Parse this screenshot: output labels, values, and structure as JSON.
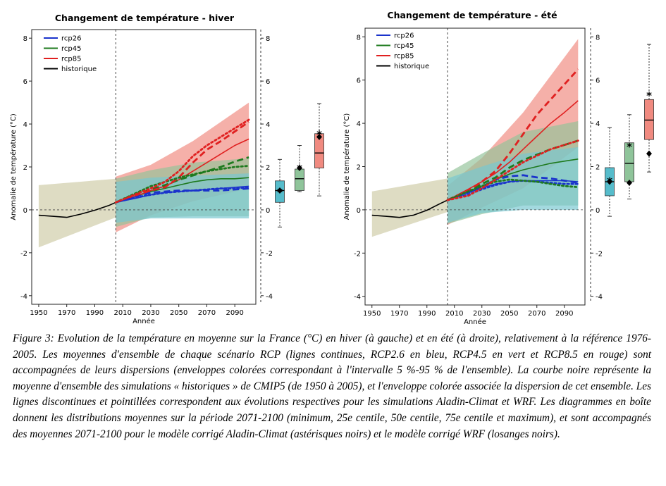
{
  "chart_data": [
    {
      "type": "line",
      "title": "Changement de température - hiver",
      "xlabel": "Année",
      "ylabel": "Anomalie de température (°C)",
      "xlim": [
        1945,
        2105
      ],
      "ylim": [
        -4.4,
        8.4
      ],
      "x_ticks": [
        1950,
        1970,
        1990,
        2010,
        2030,
        2050,
        2070,
        2090
      ],
      "y_ticks": [
        -4,
        -2,
        0,
        2,
        4,
        6,
        8
      ],
      "y_tick_labels": [
        "-4",
        "-2",
        "0",
        "2",
        "4",
        "6",
        "8"
      ],
      "right_tick_labels": [
        "-4",
        "-2",
        "0",
        "2",
        "4",
        "6",
        "8"
      ],
      "vline_x": 2005,
      "legend": {
        "position": "top-left",
        "entries": [
          {
            "name": "rcp26",
            "color": "#1a33cc"
          },
          {
            "name": "rcp45",
            "color": "#1e7a1e"
          },
          {
            "name": "rcp85",
            "color": "#e02020"
          },
          {
            "name": "historique",
            "color": "#000000"
          }
        ]
      },
      "series": [
        {
          "name": "historique",
          "style": "solid",
          "color": "#000000",
          "x": [
            1950,
            1960,
            1970,
            1980,
            1990,
            2000,
            2005
          ],
          "y": [
            -0.25,
            -0.3,
            -0.35,
            -0.2,
            -0.02,
            0.2,
            0.35
          ]
        },
        {
          "name": "rcp26",
          "style": "solid",
          "color": "#1a33cc",
          "x": [
            2005,
            2020,
            2030,
            2040,
            2050,
            2060,
            2070,
            2080,
            2090,
            2100
          ],
          "y": [
            0.35,
            0.55,
            0.7,
            0.8,
            0.85,
            0.9,
            0.95,
            1.0,
            1.05,
            1.1
          ]
        },
        {
          "name": "rcp45",
          "style": "solid",
          "color": "#1e7a1e",
          "x": [
            2005,
            2020,
            2030,
            2040,
            2050,
            2060,
            2070,
            2080,
            2090,
            2100
          ],
          "y": [
            0.35,
            0.65,
            0.85,
            1.0,
            1.15,
            1.3,
            1.4,
            1.45,
            1.45,
            1.5
          ]
        },
        {
          "name": "rcp85",
          "style": "solid",
          "color": "#e02020",
          "x": [
            2005,
            2020,
            2030,
            2040,
            2050,
            2060,
            2070,
            2080,
            2090,
            2100
          ],
          "y": [
            0.35,
            0.65,
            0.9,
            1.1,
            1.4,
            1.8,
            2.2,
            2.6,
            3.0,
            3.3
          ]
        },
        {
          "name": "rcp26",
          "style": "dashed",
          "color": "#1a33cc",
          "x": [
            2005,
            2020,
            2030,
            2040,
            2050,
            2060,
            2070,
            2080,
            2090,
            2100
          ],
          "y": [
            0.35,
            0.65,
            0.8,
            0.85,
            0.9,
            0.9,
            0.9,
            0.9,
            0.95,
            1.0
          ]
        },
        {
          "name": "rcp45",
          "style": "dashed",
          "color": "#1e7a1e",
          "x": [
            2005,
            2020,
            2030,
            2040,
            2050,
            2060,
            2070,
            2080,
            2090,
            2100
          ],
          "y": [
            0.35,
            0.75,
            0.95,
            1.15,
            1.4,
            1.6,
            1.8,
            2.0,
            2.25,
            2.45
          ]
        },
        {
          "name": "rcp85",
          "style": "dashed",
          "color": "#e02020",
          "x": [
            2005,
            2020,
            2030,
            2040,
            2050,
            2060,
            2070,
            2080,
            2090,
            2100
          ],
          "y": [
            0.35,
            0.7,
            0.9,
            1.05,
            1.5,
            2.2,
            2.8,
            3.2,
            3.65,
            4.1
          ]
        },
        {
          "name": "rcp26",
          "style": "dotted",
          "color": "#1a33cc",
          "x": [
            2005,
            2020,
            2030,
            2040,
            2050,
            2060,
            2070,
            2080,
            2090,
            2100
          ],
          "y": [
            0.35,
            0.6,
            0.7,
            0.8,
            0.85,
            0.9,
            0.95,
            1.0,
            1.0,
            1.05
          ]
        },
        {
          "name": "rcp45",
          "style": "dotted",
          "color": "#1e7a1e",
          "x": [
            2005,
            2020,
            2030,
            2040,
            2050,
            2060,
            2070,
            2080,
            2090,
            2100
          ],
          "y": [
            0.35,
            0.8,
            1.1,
            1.3,
            1.5,
            1.65,
            1.8,
            1.9,
            2.0,
            2.05
          ]
        },
        {
          "name": "rcp85",
          "style": "dotted",
          "color": "#e02020",
          "x": [
            2005,
            2020,
            2030,
            2040,
            2050,
            2060,
            2070,
            2080,
            2090,
            2100
          ],
          "y": [
            0.35,
            0.75,
            1.0,
            1.3,
            1.8,
            2.5,
            3.0,
            3.4,
            3.8,
            4.2
          ]
        }
      ],
      "bands": [
        {
          "name": "historique",
          "color": "#cfcba6",
          "x": [
            1950,
            2005
          ],
          "lower": [
            -1.75,
            -0.35
          ],
          "upper": [
            1.15,
            1.45
          ]
        },
        {
          "name": "rcp85",
          "color": "#f08a80",
          "x": [
            2005,
            2030,
            2060,
            2100
          ],
          "lower": [
            -1.05,
            -0.25,
            0.4,
            1.0
          ],
          "upper": [
            1.55,
            2.1,
            3.2,
            5.0
          ]
        },
        {
          "name": "rcp45",
          "color": "#93c29a",
          "x": [
            2005,
            2030,
            2060,
            2100
          ],
          "lower": [
            -0.8,
            -0.35,
            -0.3,
            -0.3
          ],
          "upper": [
            1.45,
            1.85,
            2.2,
            2.4
          ]
        },
        {
          "name": "rcp26",
          "color": "#78c7d0",
          "x": [
            2005,
            2030,
            2060,
            2100
          ],
          "lower": [
            -0.6,
            -0.4,
            -0.4,
            -0.4
          ],
          "upper": [
            1.3,
            1.5,
            1.6,
            1.7
          ]
        }
      ],
      "boxplots": [
        {
          "name": "rcp26",
          "color": "#56bccb",
          "min": -0.8,
          "q1": 0.35,
          "median": 0.9,
          "q3": 1.35,
          "max": 2.35,
          "asterisk": 0.85,
          "diamond": 0.9
        },
        {
          "name": "rcp45",
          "color": "#8fc49a",
          "min": 0.85,
          "q1": 0.9,
          "median": 1.45,
          "q3": 1.9,
          "max": 3.0,
          "asterisk": 1.95,
          "diamond": 1.95
        },
        {
          "name": "rcp85",
          "color": "#f08a80",
          "min": 0.65,
          "q1": 1.95,
          "median": 2.65,
          "q3": 3.55,
          "max": 4.95,
          "asterisk": 3.55,
          "diamond": 3.4
        }
      ]
    },
    {
      "type": "line",
      "title": "Changement de température - été",
      "xlabel": "Année",
      "ylabel": "Anomalie de température (°C)",
      "xlim": [
        1945,
        2105
      ],
      "ylim": [
        -4.4,
        8.4
      ],
      "x_ticks": [
        1950,
        1970,
        1990,
        2010,
        2030,
        2050,
        2070,
        2090
      ],
      "y_ticks": [
        -4,
        -2,
        0,
        2,
        4,
        6,
        8
      ],
      "y_tick_labels": [
        "-4",
        "-2",
        "0",
        "2",
        "4",
        "6",
        "8"
      ],
      "right_tick_labels": [
        "-4",
        "-2",
        "0",
        "2",
        "4",
        "6",
        "8"
      ],
      "vline_x": 2005,
      "legend": {
        "position": "top-left",
        "entries": [
          {
            "name": "rcp26",
            "color": "#1a33cc"
          },
          {
            "name": "rcp45",
            "color": "#1e7a1e"
          },
          {
            "name": "rcp85",
            "color": "#e02020"
          },
          {
            "name": "historique",
            "color": "#000000"
          }
        ]
      },
      "series": [
        {
          "name": "historique",
          "style": "solid",
          "color": "#000000",
          "x": [
            1950,
            1960,
            1970,
            1980,
            1990,
            2000,
            2005
          ],
          "y": [
            -0.25,
            -0.3,
            -0.35,
            -0.25,
            -0.02,
            0.3,
            0.45
          ]
        },
        {
          "name": "rcp26",
          "style": "solid",
          "color": "#1a33cc",
          "x": [
            2005,
            2020,
            2030,
            2040,
            2050,
            2060,
            2070,
            2080,
            2090,
            2100
          ],
          "y": [
            0.45,
            0.8,
            1.0,
            1.2,
            1.3,
            1.35,
            1.35,
            1.35,
            1.35,
            1.3
          ]
        },
        {
          "name": "rcp45",
          "style": "solid",
          "color": "#1e7a1e",
          "x": [
            2005,
            2020,
            2030,
            2040,
            2050,
            2060,
            2070,
            2080,
            2090,
            2100
          ],
          "y": [
            0.45,
            0.85,
            1.1,
            1.4,
            1.65,
            1.85,
            2.0,
            2.15,
            2.25,
            2.35
          ]
        },
        {
          "name": "rcp85",
          "style": "solid",
          "color": "#e02020",
          "x": [
            2005,
            2020,
            2030,
            2040,
            2050,
            2060,
            2070,
            2080,
            2090,
            2100
          ],
          "y": [
            0.45,
            0.95,
            1.3,
            1.7,
            2.2,
            2.8,
            3.4,
            4.0,
            4.5,
            5.05
          ]
        },
        {
          "name": "rcp26",
          "style": "dashed",
          "color": "#1a33cc",
          "x": [
            2005,
            2020,
            2030,
            2040,
            2050,
            2060,
            2070,
            2080,
            2090,
            2100
          ],
          "y": [
            0.45,
            0.8,
            1.05,
            1.4,
            1.55,
            1.6,
            1.5,
            1.45,
            1.35,
            1.25
          ]
        },
        {
          "name": "rcp45",
          "style": "dashed",
          "color": "#1e7a1e",
          "x": [
            2005,
            2020,
            2030,
            2040,
            2050,
            2060,
            2070,
            2080,
            2090,
            2100
          ],
          "y": [
            0.45,
            0.9,
            1.2,
            1.5,
            1.95,
            2.3,
            2.55,
            2.8,
            3.0,
            3.2
          ]
        },
        {
          "name": "rcp85",
          "style": "dashed",
          "color": "#e02020",
          "x": [
            2005,
            2020,
            2030,
            2040,
            2050,
            2060,
            2070,
            2080,
            2090,
            2100
          ],
          "y": [
            0.45,
            0.9,
            1.3,
            1.8,
            2.6,
            3.5,
            4.4,
            5.1,
            5.8,
            6.5
          ]
        },
        {
          "name": "rcp26",
          "style": "dotted",
          "color": "#1a33cc",
          "x": [
            2005,
            2020,
            2030,
            2040,
            2050,
            2060,
            2070,
            2080,
            2090,
            2100
          ],
          "y": [
            0.45,
            0.7,
            0.95,
            1.15,
            1.3,
            1.35,
            1.3,
            1.25,
            1.2,
            1.2
          ]
        },
        {
          "name": "rcp45",
          "style": "dotted",
          "color": "#1e7a1e",
          "x": [
            2005,
            2020,
            2030,
            2040,
            2050,
            2060,
            2070,
            2080,
            2090,
            2100
          ],
          "y": [
            0.45,
            0.85,
            1.1,
            1.3,
            1.4,
            1.35,
            1.3,
            1.2,
            1.1,
            1.05
          ]
        },
        {
          "name": "rcp85",
          "style": "dotted",
          "color": "#e02020",
          "x": [
            2005,
            2020,
            2030,
            2040,
            2050,
            2060,
            2070,
            2080,
            2090,
            2100
          ],
          "y": [
            0.45,
            0.65,
            1.0,
            1.4,
            1.8,
            2.2,
            2.5,
            2.8,
            3.0,
            3.2
          ]
        }
      ],
      "bands": [
        {
          "name": "historique",
          "color": "#cfcba6",
          "x": [
            1950,
            2005
          ],
          "lower": [
            -1.25,
            -0.1
          ],
          "upper": [
            0.85,
            1.45
          ]
        },
        {
          "name": "rcp85",
          "color": "#f08a80",
          "x": [
            2005,
            2030,
            2060,
            2100
          ],
          "lower": [
            -0.7,
            0.1,
            1.0,
            2.9
          ],
          "upper": [
            1.1,
            2.4,
            4.5,
            7.9
          ]
        },
        {
          "name": "rcp45",
          "color": "#93c29a",
          "x": [
            2005,
            2030,
            2060,
            2100
          ],
          "lower": [
            -0.65,
            -0.2,
            0.2,
            0.2
          ],
          "upper": [
            1.7,
            2.6,
            3.6,
            4.1
          ]
        },
        {
          "name": "rcp26",
          "color": "#78c7d0",
          "x": [
            2005,
            2030,
            2060,
            2100
          ],
          "lower": [
            -0.6,
            -0.15,
            0.0,
            0.0
          ],
          "upper": [
            1.45,
            2.0,
            2.6,
            2.9
          ]
        }
      ],
      "boxplots": [
        {
          "name": "rcp26",
          "color": "#56bccb",
          "min": -0.3,
          "q1": 0.65,
          "median": 1.3,
          "q3": 1.95,
          "max": 3.8,
          "asterisk": 1.35,
          "diamond": 1.3
        },
        {
          "name": "rcp45",
          "color": "#8fc49a",
          "min": 0.5,
          "q1": 1.3,
          "median": 2.15,
          "q3": 3.1,
          "max": 4.4,
          "asterisk": 2.95,
          "diamond": 1.25
        },
        {
          "name": "rcp85",
          "color": "#f08a80",
          "min": 1.75,
          "q1": 3.25,
          "median": 4.15,
          "q3": 5.1,
          "max": 7.65,
          "asterisk": 5.3,
          "diamond": 2.6
        }
      ]
    }
  ],
  "caption": {
    "lines": [
      "Figure 3: Evolution de la température en moyenne sur la France (°C) en hiver (à gauche) et en été (à droite),",
      "relativement à la référence 1976-2005. Les moyennes d'ensemble de chaque scénario RCP (lignes continues, RCP2.6",
      "en bleu, RCP4.5 en vert et RCP8.5 en rouge) sont accompagnées de leurs dispersions (enveloppes colorées",
      "correspondant à l'intervalle 5 %-95 % de l'ensemble). La courbe noire représente la moyenne d'ensemble des",
      "simulations « historiques » de CMIP5 (de 1950 à 2005), et l'enveloppe colorée associée la dispersion de cet",
      "ensemble. Les lignes discontinues et pointillées correspondent aux évolutions respectives pour les simulations",
      "Aladin-Climat et WRF. Les diagrammes en boîte donnent les distributions moyennes sur la période 2071-2100",
      "(minimum, 25e centile, 50e centile, 75e centile et maximum), et sont accompagnés des moyennes 2071-2100 pour le",
      "modèle corrigé Aladin-Climat (astérisques noirs) et le modèle corrigé WRF (losanges noirs)."
    ]
  }
}
